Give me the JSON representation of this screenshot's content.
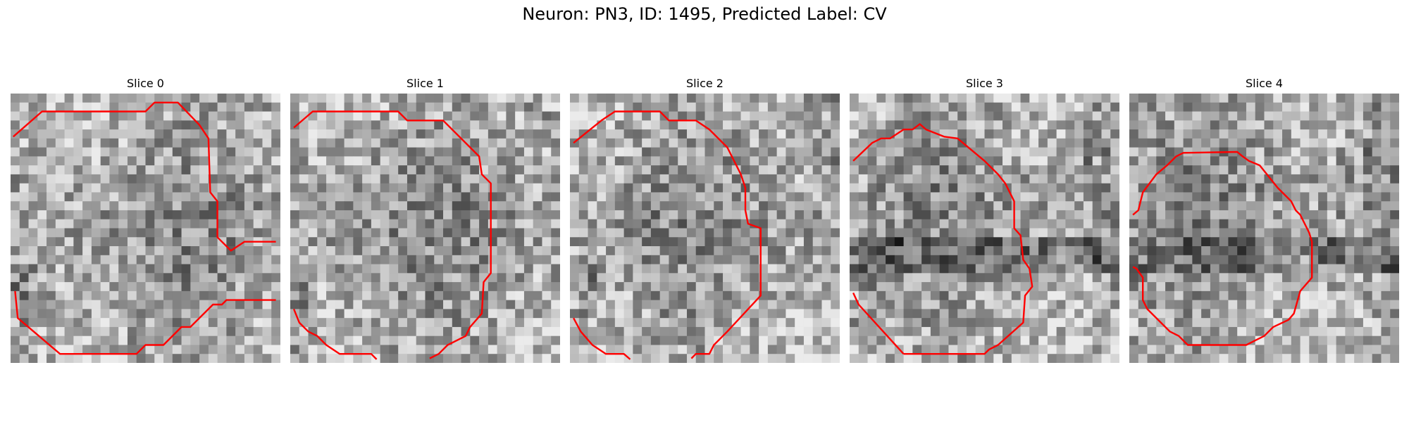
{
  "figure": {
    "title": "Neuron: PN3, ID: 1495, Predicted Label: CV"
  },
  "panels": [
    {
      "title": "Slice 0",
      "seed": 11,
      "dark_band": 0.0
    },
    {
      "title": "Slice 1",
      "seed": 23,
      "dark_band": 0.0
    },
    {
      "title": "Slice 2",
      "seed": 37,
      "dark_band": 0.0
    },
    {
      "title": "Slice 3",
      "seed": 41,
      "dark_band": 0.75
    },
    {
      "title": "Slice 4",
      "seed": 53,
      "dark_band": 0.6
    }
  ],
  "style": {
    "contour_color": "#ff0000"
  }
}
